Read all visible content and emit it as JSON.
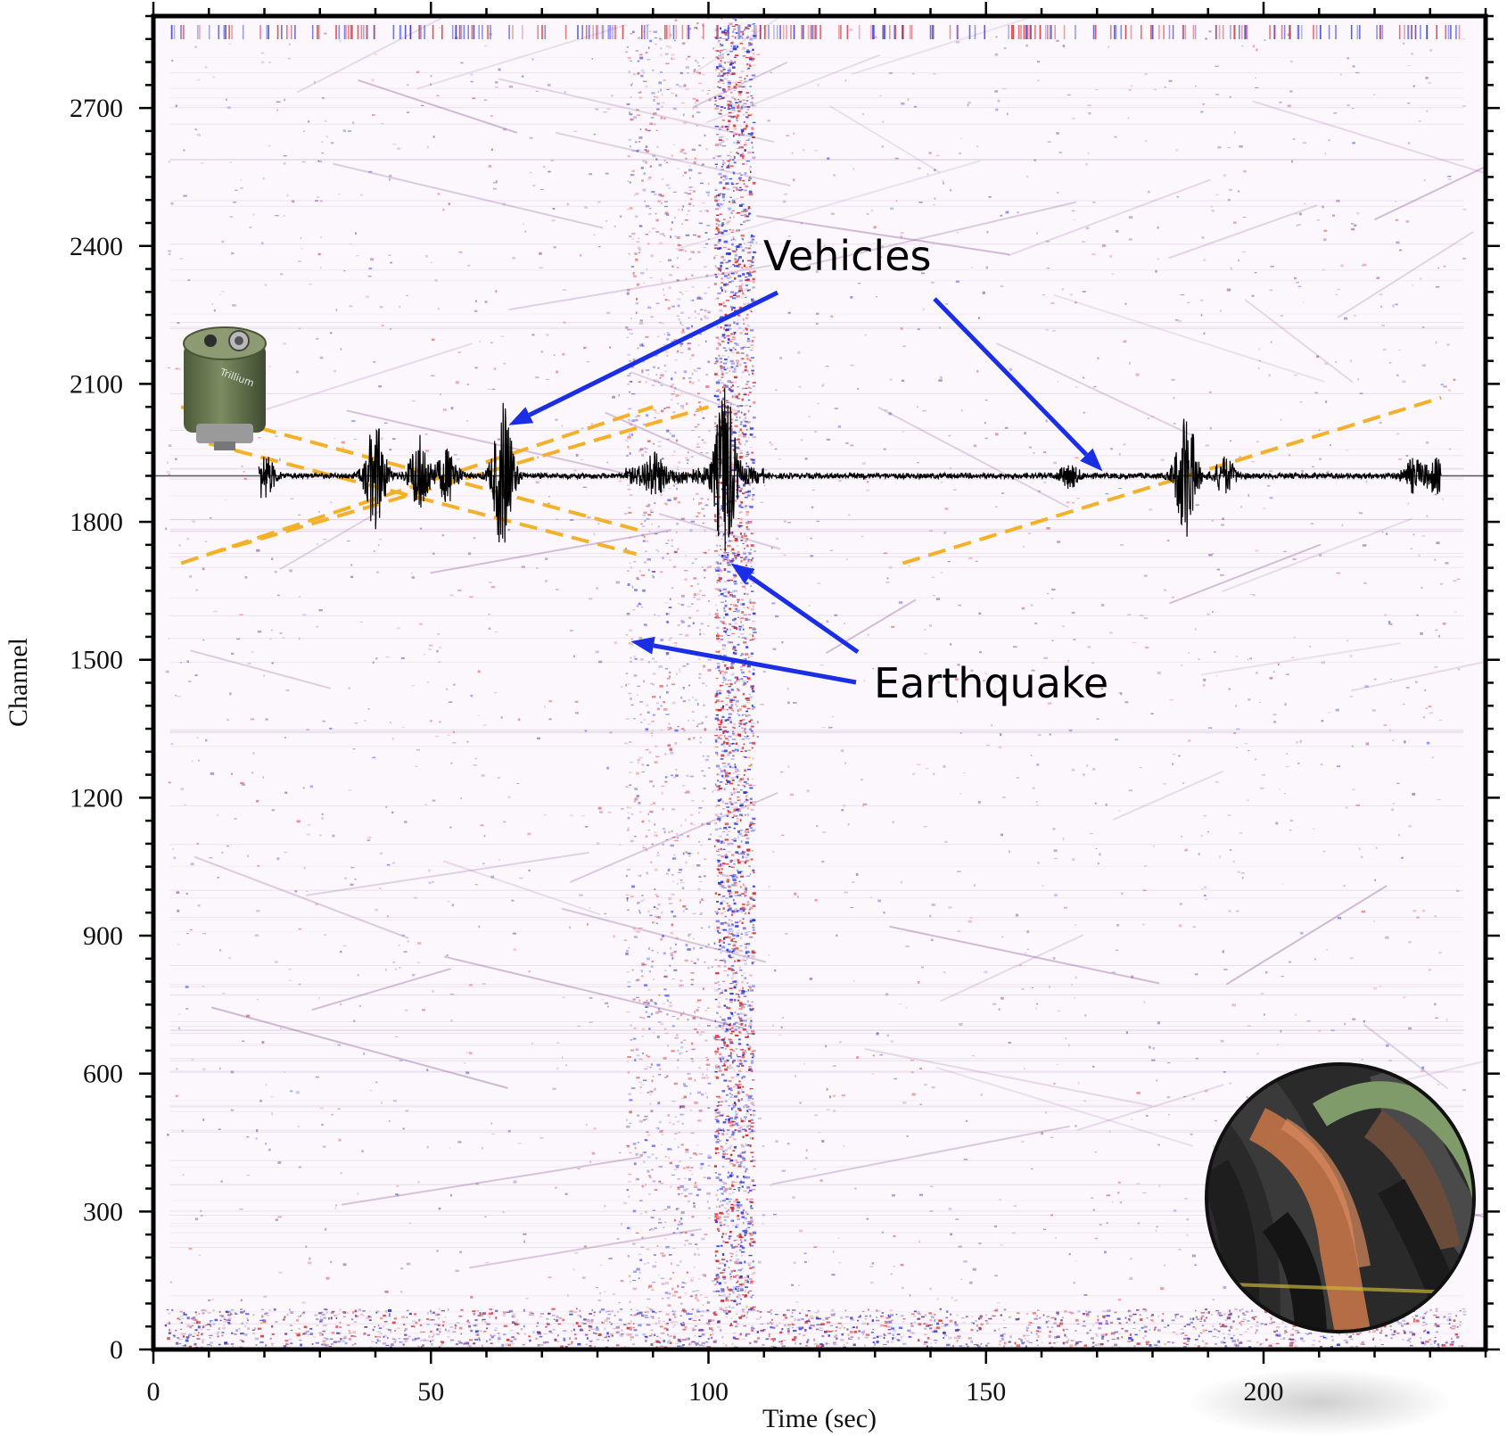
{
  "chart_data": {
    "type": "heatmap",
    "title": "",
    "xlabel": "Time (sec)",
    "ylabel": "Channel",
    "xlim": [
      0,
      240
    ],
    "ylim": [
      0,
      2900
    ],
    "x_ticks": [
      0,
      50,
      100,
      150,
      200
    ],
    "x_tick_labels": [
      "0",
      "50",
      "100",
      "150",
      "200"
    ],
    "y_ticks": [
      0,
      300,
      600,
      900,
      1200,
      1500,
      1800,
      2100,
      2400,
      2700
    ],
    "y_tick_labels": [
      "0",
      "300",
      "600",
      "900",
      "1200",
      "1500",
      "1800",
      "2100",
      "2400",
      "2700"
    ],
    "colormap": [
      "#2030d0",
      "#ffffff",
      "#d02020"
    ],
    "strong_signal_bands": [
      {
        "x_range": [
          85,
          100
        ],
        "y_range": [
          0,
          2900
        ],
        "strength": "moderate"
      },
      {
        "x_range": [
          101,
          108
        ],
        "y_range": [
          80,
          2900
        ],
        "strength": "strong"
      }
    ],
    "noisy_bottom_band": {
      "y_range": [
        0,
        90
      ]
    },
    "vehicle_tracks": [
      {
        "from": [
          5,
          2050
        ],
        "to": [
          88,
          1780
        ]
      },
      {
        "from": [
          10,
          1970
        ],
        "to": [
          87,
          1730
        ]
      },
      {
        "from": [
          5,
          1710
        ],
        "to": [
          90,
          2050
        ]
      },
      {
        "from": [
          10,
          1730
        ],
        "to": [
          100,
          2050
        ]
      },
      {
        "from": [
          135,
          1710
        ],
        "to": [
          232,
          2070
        ]
      }
    ],
    "waveform_trace": {
      "baseline_channel": 1900,
      "bursts": [
        {
          "t": 20,
          "amp": 25
        },
        {
          "t": 40,
          "amp": 60
        },
        {
          "t": 48,
          "amp": 45
        },
        {
          "t": 53,
          "amp": 30
        },
        {
          "t": 63,
          "amp": 85
        },
        {
          "t": 90,
          "amp": 20
        },
        {
          "t": 103,
          "amp": 95
        },
        {
          "t": 165,
          "amp": 12
        },
        {
          "t": 186,
          "amp": 75
        },
        {
          "t": 193,
          "amp": 20
        },
        {
          "t": 227,
          "amp": 18
        },
        {
          "t": 231,
          "amp": 18
        }
      ],
      "range": [
        19,
        232
      ],
      "color": "#000000"
    },
    "annotations": [
      {
        "text": "Vehicles",
        "arrows_to": [
          [
            64,
            2010
          ],
          [
            171,
            1910
          ]
        ]
      },
      {
        "text": "Earthquake",
        "arrows_to": [
          [
            104,
            1710
          ],
          [
            86,
            1540
          ]
        ]
      }
    ],
    "track_color": "#f5b02a",
    "arrow_color": "#1a2ee6",
    "icons": [
      "seismometer-icon",
      "fiber-cable-icon"
    ]
  }
}
